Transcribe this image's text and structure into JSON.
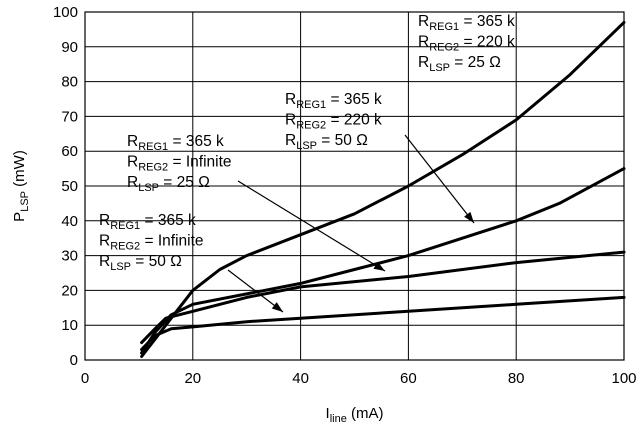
{
  "chart_data": {
    "type": "line",
    "title": "",
    "xlabel": {
      "main": "I",
      "sub": "line",
      "unit": " (mA)"
    },
    "ylabel": {
      "main": "P",
      "sub": "LSP",
      "unit": " (mW)"
    },
    "xlim": [
      0,
      100
    ],
    "ylim": [
      0,
      100
    ],
    "x_ticks": [
      0,
      20,
      40,
      60,
      80,
      100
    ],
    "y_ticks": [
      0,
      10,
      20,
      30,
      40,
      50,
      60,
      70,
      80,
      90,
      100
    ],
    "grid": true,
    "series": [
      {
        "points": [
          [
            10.5,
            1
          ],
          [
            13,
            6
          ],
          [
            16,
            12
          ],
          [
            20,
            20
          ],
          [
            25,
            26
          ],
          [
            30,
            30
          ],
          [
            40,
            36
          ],
          [
            50,
            42
          ],
          [
            60,
            50
          ],
          [
            70,
            59
          ],
          [
            80,
            69
          ],
          [
            90,
            82
          ],
          [
            100,
            97
          ]
        ],
        "annotation": [
          {
            "main": "R",
            "sub": "REG1",
            "rest": " = 365 k"
          },
          {
            "main": "R",
            "sub": "REG2",
            "rest": " = 220 k"
          },
          {
            "main": "R",
            "sub": "LSP",
            "rest": " = 25 Ω"
          }
        ]
      },
      {
        "points": [
          [
            10.5,
            2
          ],
          [
            13,
            8
          ],
          [
            16,
            13
          ],
          [
            20,
            16
          ],
          [
            30,
            19
          ],
          [
            40,
            22
          ],
          [
            50,
            26
          ],
          [
            60,
            30
          ],
          [
            70,
            35
          ],
          [
            80,
            40
          ],
          [
            88,
            45
          ],
          [
            100,
            55
          ]
        ],
        "annotation": [
          {
            "main": "R",
            "sub": "REG1",
            "rest": " = 365 k"
          },
          {
            "main": "R",
            "sub": "REG2",
            "rest": " = 220 k"
          },
          {
            "main": "R",
            "sub": "LSP",
            "rest": " = 50 Ω"
          }
        ]
      },
      {
        "points": [
          [
            10.5,
            5
          ],
          [
            13,
            9
          ],
          [
            15,
            12
          ],
          [
            20,
            14
          ],
          [
            30,
            18
          ],
          [
            40,
            21
          ],
          [
            60,
            24
          ],
          [
            80,
            28
          ],
          [
            100,
            31
          ]
        ],
        "annotation": [
          {
            "main": "R",
            "sub": "REG1",
            "rest": " = 365 k"
          },
          {
            "main": "R",
            "sub": "REG2",
            "rest": " = Infinite"
          },
          {
            "main": "R",
            "sub": "LSP",
            "rest": " = 25 Ω"
          }
        ]
      },
      {
        "points": [
          [
            10.5,
            3
          ],
          [
            13,
            7
          ],
          [
            16,
            9
          ],
          [
            20,
            9.5
          ],
          [
            30,
            11
          ],
          [
            40,
            12
          ],
          [
            60,
            14
          ],
          [
            80,
            16
          ],
          [
            100,
            18
          ]
        ],
        "annotation": [
          {
            "main": "R",
            "sub": "REG1",
            "rest": " = 365 k"
          },
          {
            "main": "R",
            "sub": "REG2",
            "rest": " = Infinite"
          },
          {
            "main": "R",
            "sub": "LSP",
            "rest": " = 50 Ω"
          }
        ]
      }
    ]
  }
}
